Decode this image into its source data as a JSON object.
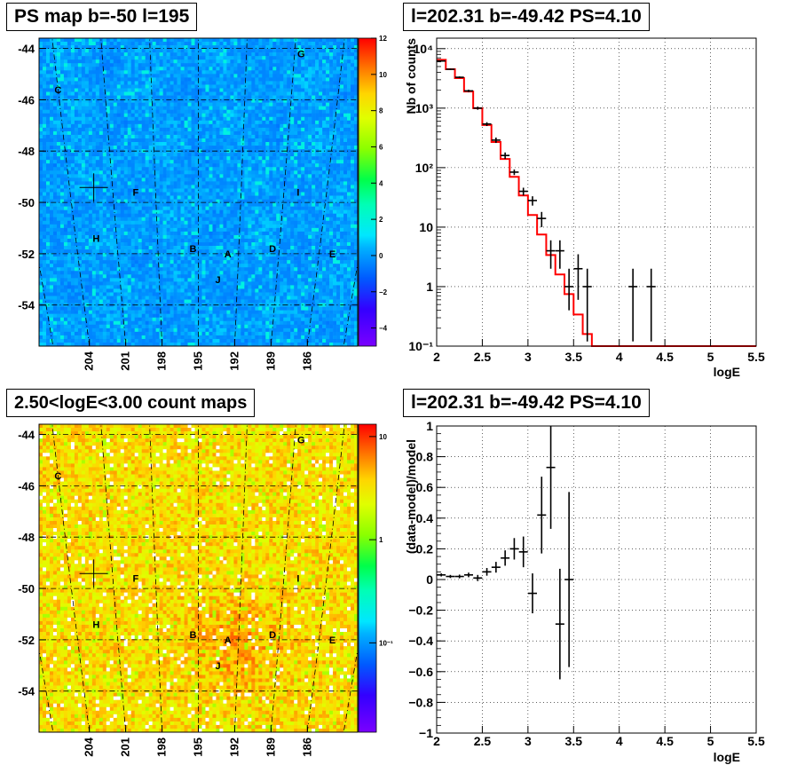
{
  "panels": {
    "tl_title": "PS map b=-50 l=195",
    "tr_title": "l=202.31 b=-49.42 PS=4.10",
    "bl_title": "2.50<logE<3.00 count maps",
    "br_title": "l=202.31 b=-49.42 PS=4.10"
  },
  "chart_data": [
    {
      "type": "heatmap",
      "title": "PS map b=-50 l=195",
      "y_ticks": [
        "-44",
        "-46",
        "-48",
        "-50",
        "-52",
        "-54"
      ],
      "x_ticks": [
        "204",
        "201",
        "198",
        "195",
        "192",
        "189",
        "186"
      ],
      "colorbar_ticks": [
        "12",
        "10",
        "8",
        "6",
        "4",
        "2",
        "0",
        "−2",
        "−4"
      ],
      "colorbar_range": [
        -5,
        12
      ],
      "source_labels": [
        {
          "label": "G",
          "l": 188.6,
          "b": -44.2
        },
        {
          "label": "C",
          "l": 204.0,
          "b": -45.6
        },
        {
          "label": "F",
          "l": 199.4,
          "b": -49.6
        },
        {
          "label": "I",
          "l": 188.0,
          "b": -49.6
        },
        {
          "label": "H",
          "l": 202.5,
          "b": -51.4
        },
        {
          "label": "B",
          "l": 195.4,
          "b": -51.8
        },
        {
          "label": "A",
          "l": 192.8,
          "b": -52.0
        },
        {
          "label": "D",
          "l": 189.5,
          "b": -51.8
        },
        {
          "label": "E",
          "l": 185.0,
          "b": -52.0
        },
        {
          "label": "J",
          "l": 193.5,
          "b": -53.0
        }
      ],
      "marker": {
        "l": 202.31,
        "b": -49.42
      }
    },
    {
      "type": "line",
      "title": "l=202.31 b=-49.42 PS=4.10",
      "xlabel": "logE",
      "ylabel": "Nb of counts",
      "xlim": [
        2,
        5.5
      ],
      "ylim": [
        0.1,
        15000
      ],
      "yscale": "log",
      "grid": true,
      "x_ticks": [
        "2",
        "2.5",
        "3",
        "3.5",
        "4",
        "4.5",
        "5",
        "5.5"
      ],
      "y_ticks": [
        "10⁻¹",
        "1",
        "10",
        "10²",
        "10³",
        "10⁴"
      ],
      "series": [
        {
          "type": "step",
          "color": "#ff0000",
          "edges": [
            2.0,
            2.1,
            2.2,
            2.3,
            2.4,
            2.5,
            2.6,
            2.7,
            2.8,
            2.9,
            3.0,
            3.1,
            3.2,
            3.3,
            3.4,
            3.5,
            3.6,
            3.7,
            3.8,
            3.9,
            4.0,
            4.1,
            5.5
          ],
          "values": [
            6500,
            4500,
            3200,
            1900,
            1000,
            520,
            270,
            140,
            70,
            34,
            16,
            7.5,
            3.4,
            1.6,
            0.75,
            0.34,
            0.16,
            0.1,
            0.1,
            0.1,
            0.1,
            0.1
          ]
        },
        {
          "type": "errorbars",
          "color": "#000000",
          "points": [
            {
              "x": 2.05,
              "y": 6200,
              "lo": 6050,
              "hi": 6350
            },
            {
              "x": 2.15,
              "y": 4500,
              "lo": 4370,
              "hi": 4630
            },
            {
              "x": 2.25,
              "y": 3300,
              "lo": 3190,
              "hi": 3410
            },
            {
              "x": 2.35,
              "y": 1950,
              "lo": 1860,
              "hi": 2040
            },
            {
              "x": 2.45,
              "y": 1000,
              "lo": 940,
              "hi": 1060
            },
            {
              "x": 2.55,
              "y": 540,
              "lo": 500,
              "hi": 580
            },
            {
              "x": 2.65,
              "y": 290,
              "lo": 260,
              "hi": 320
            },
            {
              "x": 2.75,
              "y": 160,
              "lo": 140,
              "hi": 180
            },
            {
              "x": 2.85,
              "y": 84,
              "lo": 75,
              "hi": 93
            },
            {
              "x": 2.95,
              "y": 40,
              "lo": 34,
              "hi": 46
            },
            {
              "x": 3.05,
              "y": 28,
              "lo": 23,
              "hi": 33
            },
            {
              "x": 3.15,
              "y": 14,
              "lo": 10,
              "hi": 18
            },
            {
              "x": 3.25,
              "y": 4,
              "lo": 2,
              "hi": 6
            },
            {
              "x": 3.35,
              "y": 4,
              "lo": 2,
              "hi": 6
            },
            {
              "x": 3.45,
              "y": 1,
              "lo": 0.4,
              "hi": 2
            },
            {
              "x": 3.55,
              "y": 2,
              "lo": 0.6,
              "hi": 3.5
            },
            {
              "x": 3.65,
              "y": 1,
              "lo": 0.12,
              "hi": 2
            },
            {
              "x": 4.15,
              "y": 1,
              "lo": 0.12,
              "hi": 2
            },
            {
              "x": 4.35,
              "y": 1,
              "lo": 0.12,
              "hi": 2
            }
          ]
        }
      ]
    },
    {
      "type": "heatmap",
      "title": "2.50<logE<3.00 count maps",
      "y_ticks": [
        "-44",
        "-46",
        "-48",
        "-50",
        "-52",
        "-54"
      ],
      "x_ticks": [
        "204",
        "201",
        "198",
        "195",
        "192",
        "189",
        "186"
      ],
      "colorbar_scale": "log",
      "colorbar_ticks": [
        "10",
        "1",
        "10⁻¹"
      ],
      "source_labels": [
        {
          "label": "G",
          "l": 188.6,
          "b": -44.2
        },
        {
          "label": "C",
          "l": 204.0,
          "b": -45.6
        },
        {
          "label": "F",
          "l": 199.4,
          "b": -49.6
        },
        {
          "label": "I",
          "l": 188.0,
          "b": -49.6
        },
        {
          "label": "H",
          "l": 202.5,
          "b": -51.4
        },
        {
          "label": "B",
          "l": 195.4,
          "b": -51.8
        },
        {
          "label": "A",
          "l": 192.8,
          "b": -52.0
        },
        {
          "label": "D",
          "l": 189.5,
          "b": -51.8
        },
        {
          "label": "E",
          "l": 185.0,
          "b": -52.0
        },
        {
          "label": "J",
          "l": 193.5,
          "b": -53.0
        }
      ],
      "marker": {
        "l": 202.31,
        "b": -49.42
      }
    },
    {
      "type": "scatter",
      "title": "l=202.31 b=-49.42 PS=4.10",
      "xlabel": "logE",
      "ylabel": "(data-model)/model",
      "xlim": [
        2,
        5.5
      ],
      "ylim": [
        -1,
        1
      ],
      "grid": true,
      "x_ticks": [
        "2",
        "2.5",
        "3",
        "3.5",
        "4",
        "4.5",
        "5",
        "5.5"
      ],
      "y_ticks": [
        "−1",
        "−0.8",
        "−0.6",
        "−0.4",
        "−0.2",
        "0",
        "0.2",
        "0.4",
        "0.6",
        "0.8",
        "1"
      ],
      "series": [
        {
          "type": "errorbars",
          "color": "#000000",
          "points": [
            {
              "x": 2.05,
              "y": 0.03,
              "err": 0.01
            },
            {
              "x": 2.15,
              "y": 0.02,
              "err": 0.01
            },
            {
              "x": 2.25,
              "y": 0.02,
              "err": 0.012
            },
            {
              "x": 2.35,
              "y": 0.03,
              "err": 0.015
            },
            {
              "x": 2.45,
              "y": 0.01,
              "err": 0.02
            },
            {
              "x": 2.55,
              "y": 0.05,
              "err": 0.025
            },
            {
              "x": 2.65,
              "y": 0.08,
              "err": 0.035
            },
            {
              "x": 2.75,
              "y": 0.14,
              "err": 0.05
            },
            {
              "x": 2.85,
              "y": 0.2,
              "err": 0.07
            },
            {
              "x": 2.95,
              "y": 0.18,
              "err": 0.1
            },
            {
              "x": 3.05,
              "y": -0.09,
              "err": 0.13
            },
            {
              "x": 3.15,
              "y": 0.42,
              "err": 0.25
            },
            {
              "x": 3.25,
              "y": 0.73,
              "err": 0.4
            },
            {
              "x": 3.35,
              "y": -0.29,
              "err": 0.36
            },
            {
              "x": 3.45,
              "y": 0.0,
              "err": 0.57
            }
          ]
        }
      ]
    }
  ]
}
